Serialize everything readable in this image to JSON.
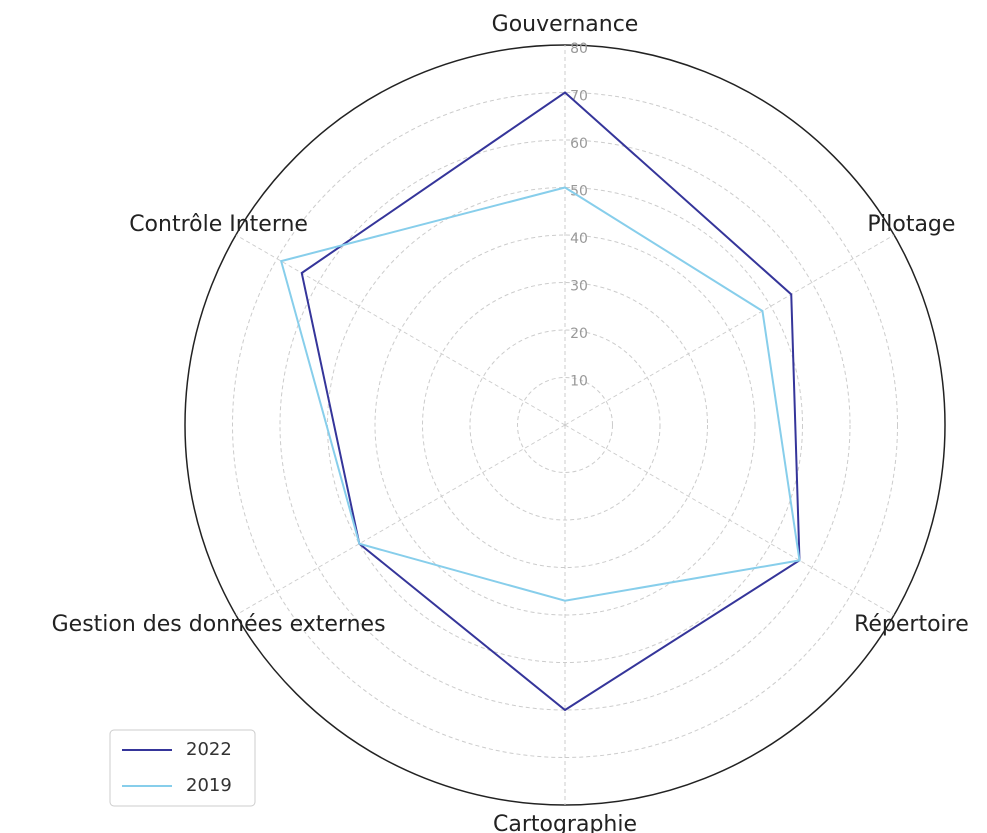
{
  "chart_data": {
    "type": "radar",
    "categories": [
      "Gouvernance",
      "Pilotage",
      "Répertoire",
      "Cartographie",
      "Gestion des données externes",
      "Contrôle Interne"
    ],
    "series": [
      {
        "name": "2022",
        "color": "#35359a",
        "values": [
          70,
          55,
          57,
          60,
          50,
          64
        ]
      },
      {
        "name": "2019",
        "color": "#87ceeb",
        "values": [
          50,
          48,
          57,
          37,
          50,
          69
        ]
      }
    ],
    "ylim": [
      0,
      80
    ],
    "yticks": [
      10,
      20,
      30,
      40,
      50,
      60,
      70,
      80
    ],
    "grid": true,
    "legend": "lower left"
  }
}
